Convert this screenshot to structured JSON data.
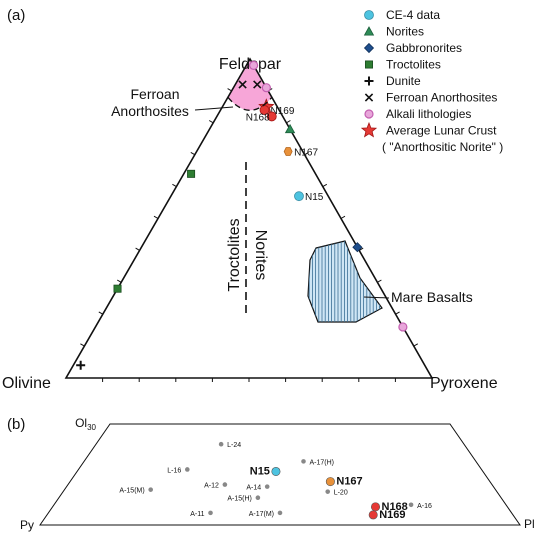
{
  "panel_a_label": "(a)",
  "panel_b_label": "(b)",
  "chart_data": [
    {
      "type": "ternary",
      "vertices": {
        "top": "Feldspar",
        "left": "Olivine",
        "right": "Pyroxene"
      },
      "region_labels": {
        "ferroan": [
          "Ferroan",
          "Anorthosites"
        ],
        "troctolites": "Troctolites",
        "norites": "Norites",
        "mare": "Mare Basalts"
      },
      "colors": {
        "ce4": "#4dc3e0",
        "norites": "#2e8b57",
        "gabbronorites": "#1f4e8c",
        "troctolites": "#2e7d32",
        "dunite": "#111111",
        "ferroan": "#111111",
        "alkali": "#c35fb0",
        "crust_star": "#e53935",
        "n168": "#e53935",
        "n167": "#e8913a",
        "ferroan_fill": "#f7a6d8",
        "mare_fill": "#cfe6f5"
      },
      "legend": [
        {
          "key": "ce4",
          "symbol": "circle",
          "text": "CE-4 data"
        },
        {
          "key": "norites",
          "symbol": "triangle",
          "text": "Norites"
        },
        {
          "key": "gabbronorites",
          "symbol": "diamond",
          "text": "Gabbronorites"
        },
        {
          "key": "troctolites",
          "symbol": "square",
          "text": "Troctolites"
        },
        {
          "key": "dunite",
          "symbol": "plus",
          "text": "Dunite"
        },
        {
          "key": "ferroan",
          "symbol": "cross",
          "text": "Ferroan Anorthosites"
        },
        {
          "key": "alkali",
          "symbol": "open-circle",
          "text": "Alkali lithologies"
        },
        {
          "key": "crust_star",
          "symbol": "star",
          "text": "Average Lunar Crust"
        },
        {
          "key": "note",
          "symbol": "none",
          "text": "( \"Anorthositic Norite\" )"
        }
      ],
      "points": [
        {
          "label": "N169",
          "feldspar": 0.84,
          "pyroxene": 0.12,
          "olivine": 0.04,
          "color_key": "n168",
          "label_color": "#e53935"
        },
        {
          "label": "N168",
          "feldspar": 0.82,
          "pyroxene": 0.15,
          "olivine": 0.03,
          "color_key": "n168",
          "label_color": "#e53935"
        },
        {
          "label": "N167",
          "feldspar": 0.71,
          "pyroxene": 0.25,
          "olivine": 0.04,
          "color_key": "n167",
          "label_color": "#e8913a"
        },
        {
          "label": "N15",
          "feldspar": 0.57,
          "pyroxene": 0.35,
          "olivine": 0.08,
          "color_key": "ce4",
          "label_color": "#4dc3e0"
        }
      ],
      "reference_points": [
        {
          "group": "troctolites",
          "feldspar": 0.64,
          "pyroxene": 0.02,
          "olivine": 0.34
        },
        {
          "group": "troctolites",
          "feldspar": 0.28,
          "pyroxene": 0.0,
          "olivine": 0.72
        },
        {
          "group": "dunite",
          "feldspar": 0.04,
          "pyroxene": 0.02,
          "olivine": 0.94
        },
        {
          "group": "norites",
          "feldspar": 0.78,
          "pyroxene": 0.22,
          "olivine": 0.0
        },
        {
          "group": "gabbronorites",
          "feldspar": 0.41,
          "pyroxene": 0.59,
          "olivine": 0.0
        },
        {
          "group": "ferroan",
          "feldspar": 0.92,
          "pyroxene": 0.02,
          "olivine": 0.06
        },
        {
          "group": "ferroan",
          "feldspar": 0.92,
          "pyroxene": 0.06,
          "olivine": 0.02
        },
        {
          "group": "alkali",
          "feldspar": 0.98,
          "pyroxene": 0.02,
          "olivine": 0.0
        },
        {
          "group": "alkali",
          "feldspar": 0.91,
          "pyroxene": 0.09,
          "olivine": 0.0
        },
        {
          "group": "alkali",
          "feldspar": 0.16,
          "pyroxene": 0.84,
          "olivine": 0.0
        },
        {
          "group": "crust_star",
          "feldspar": 0.85,
          "pyroxene": 0.12,
          "olivine": 0.03
        }
      ]
    },
    {
      "type": "scatter",
      "corner_labels": {
        "top_left": "Ol",
        "top_left_sub": "30",
        "bottom_left": "Py",
        "bottom_right": "Pl"
      },
      "background_color": "#888888",
      "points": [
        {
          "label": "L-24",
          "x": 0.34,
          "y": 0.8,
          "highlight": false
        },
        {
          "label": "L-16",
          "x": 0.27,
          "y": 0.55,
          "highlight": false
        },
        {
          "label": "A-17(H)",
          "x": 0.56,
          "y": 0.63,
          "highlight": false
        },
        {
          "label": "N15",
          "x": 0.49,
          "y": 0.53,
          "highlight": true,
          "color": "#4dc3e0"
        },
        {
          "label": "A-14",
          "x": 0.47,
          "y": 0.38,
          "highlight": false
        },
        {
          "label": "A-12",
          "x": 0.37,
          "y": 0.4,
          "highlight": false
        },
        {
          "label": "A-15(M)",
          "x": 0.2,
          "y": 0.35,
          "highlight": false
        },
        {
          "label": "A-15(H)",
          "x": 0.45,
          "y": 0.27,
          "highlight": false
        },
        {
          "label": "N167",
          "x": 0.62,
          "y": 0.43,
          "highlight": true,
          "color": "#e8913a"
        },
        {
          "label": "L-20",
          "x": 0.61,
          "y": 0.33,
          "highlight": false
        },
        {
          "label": "A-11",
          "x": 0.35,
          "y": 0.12,
          "highlight": false
        },
        {
          "label": "A-17(M)",
          "x": 0.5,
          "y": 0.12,
          "highlight": false
        },
        {
          "label": "N168",
          "x": 0.71,
          "y": 0.18,
          "highlight": true,
          "color": "#e53935"
        },
        {
          "label": "N169",
          "x": 0.7,
          "y": 0.1,
          "highlight": true,
          "color": "#e53935"
        },
        {
          "label": "A-16",
          "x": 0.79,
          "y": 0.2,
          "highlight": false
        }
      ]
    }
  ]
}
